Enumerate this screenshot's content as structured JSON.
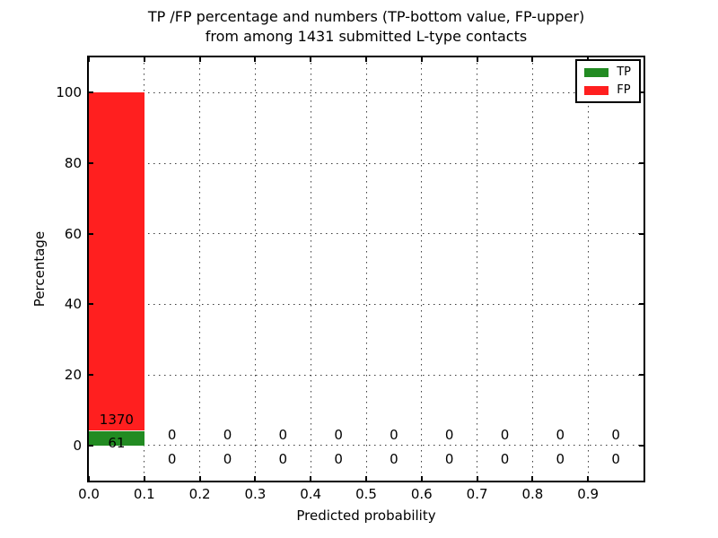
{
  "chart_data": {
    "type": "bar",
    "stacked": true,
    "title_line1": "TP /FP percentage and numbers (TP-bottom value, FP-upper)",
    "title_line2": "from among 1431 submitted L-type contacts",
    "xlabel": "Predicted probability",
    "ylabel": "Percentage",
    "xlim": [
      0.0,
      1.0
    ],
    "ylim": [
      -10,
      110
    ],
    "xtick_values": [
      0.0,
      0.1,
      0.2,
      0.3,
      0.4,
      0.5,
      0.6,
      0.7,
      0.8,
      0.9
    ],
    "xtick_labels": [
      "0.0",
      "0.1",
      "0.2",
      "0.3",
      "0.4",
      "0.5",
      "0.6",
      "0.7",
      "0.8",
      "0.9"
    ],
    "ytick_values": [
      0,
      20,
      40,
      60,
      80,
      100
    ],
    "ytick_labels": [
      "0",
      "20",
      "40",
      "60",
      "80",
      "100"
    ],
    "grid": "dotted",
    "legend_position": "upper right",
    "total_submitted": 1431,
    "colors": {
      "tp": "#228b22",
      "fp": "#ff1f1f"
    },
    "legend": [
      {
        "key": "tp",
        "label": "TP"
      },
      {
        "key": "fp",
        "label": "FP"
      }
    ],
    "bins": [
      {
        "x_start": 0.0,
        "x_end": 0.1,
        "tp_count": 61,
        "fp_count": 1370,
        "tp_pct": 4.26,
        "fp_pct": 95.74
      },
      {
        "x_start": 0.1,
        "x_end": 0.2,
        "tp_count": 0,
        "fp_count": 0,
        "tp_pct": 0,
        "fp_pct": 0
      },
      {
        "x_start": 0.2,
        "x_end": 0.3,
        "tp_count": 0,
        "fp_count": 0,
        "tp_pct": 0,
        "fp_pct": 0
      },
      {
        "x_start": 0.3,
        "x_end": 0.4,
        "tp_count": 0,
        "fp_count": 0,
        "tp_pct": 0,
        "fp_pct": 0
      },
      {
        "x_start": 0.4,
        "x_end": 0.5,
        "tp_count": 0,
        "fp_count": 0,
        "tp_pct": 0,
        "fp_pct": 0
      },
      {
        "x_start": 0.5,
        "x_end": 0.6,
        "tp_count": 0,
        "fp_count": 0,
        "tp_pct": 0,
        "fp_pct": 0
      },
      {
        "x_start": 0.6,
        "x_end": 0.7,
        "tp_count": 0,
        "fp_count": 0,
        "tp_pct": 0,
        "fp_pct": 0
      },
      {
        "x_start": 0.7,
        "x_end": 0.8,
        "tp_count": 0,
        "fp_count": 0,
        "tp_pct": 0,
        "fp_pct": 0
      },
      {
        "x_start": 0.8,
        "x_end": 0.9,
        "tp_count": 0,
        "fp_count": 0,
        "tp_pct": 0,
        "fp_pct": 0
      },
      {
        "x_start": 0.9,
        "x_end": 1.0,
        "tp_count": 0,
        "fp_count": 0,
        "tp_pct": 0,
        "fp_pct": 0
      }
    ]
  }
}
